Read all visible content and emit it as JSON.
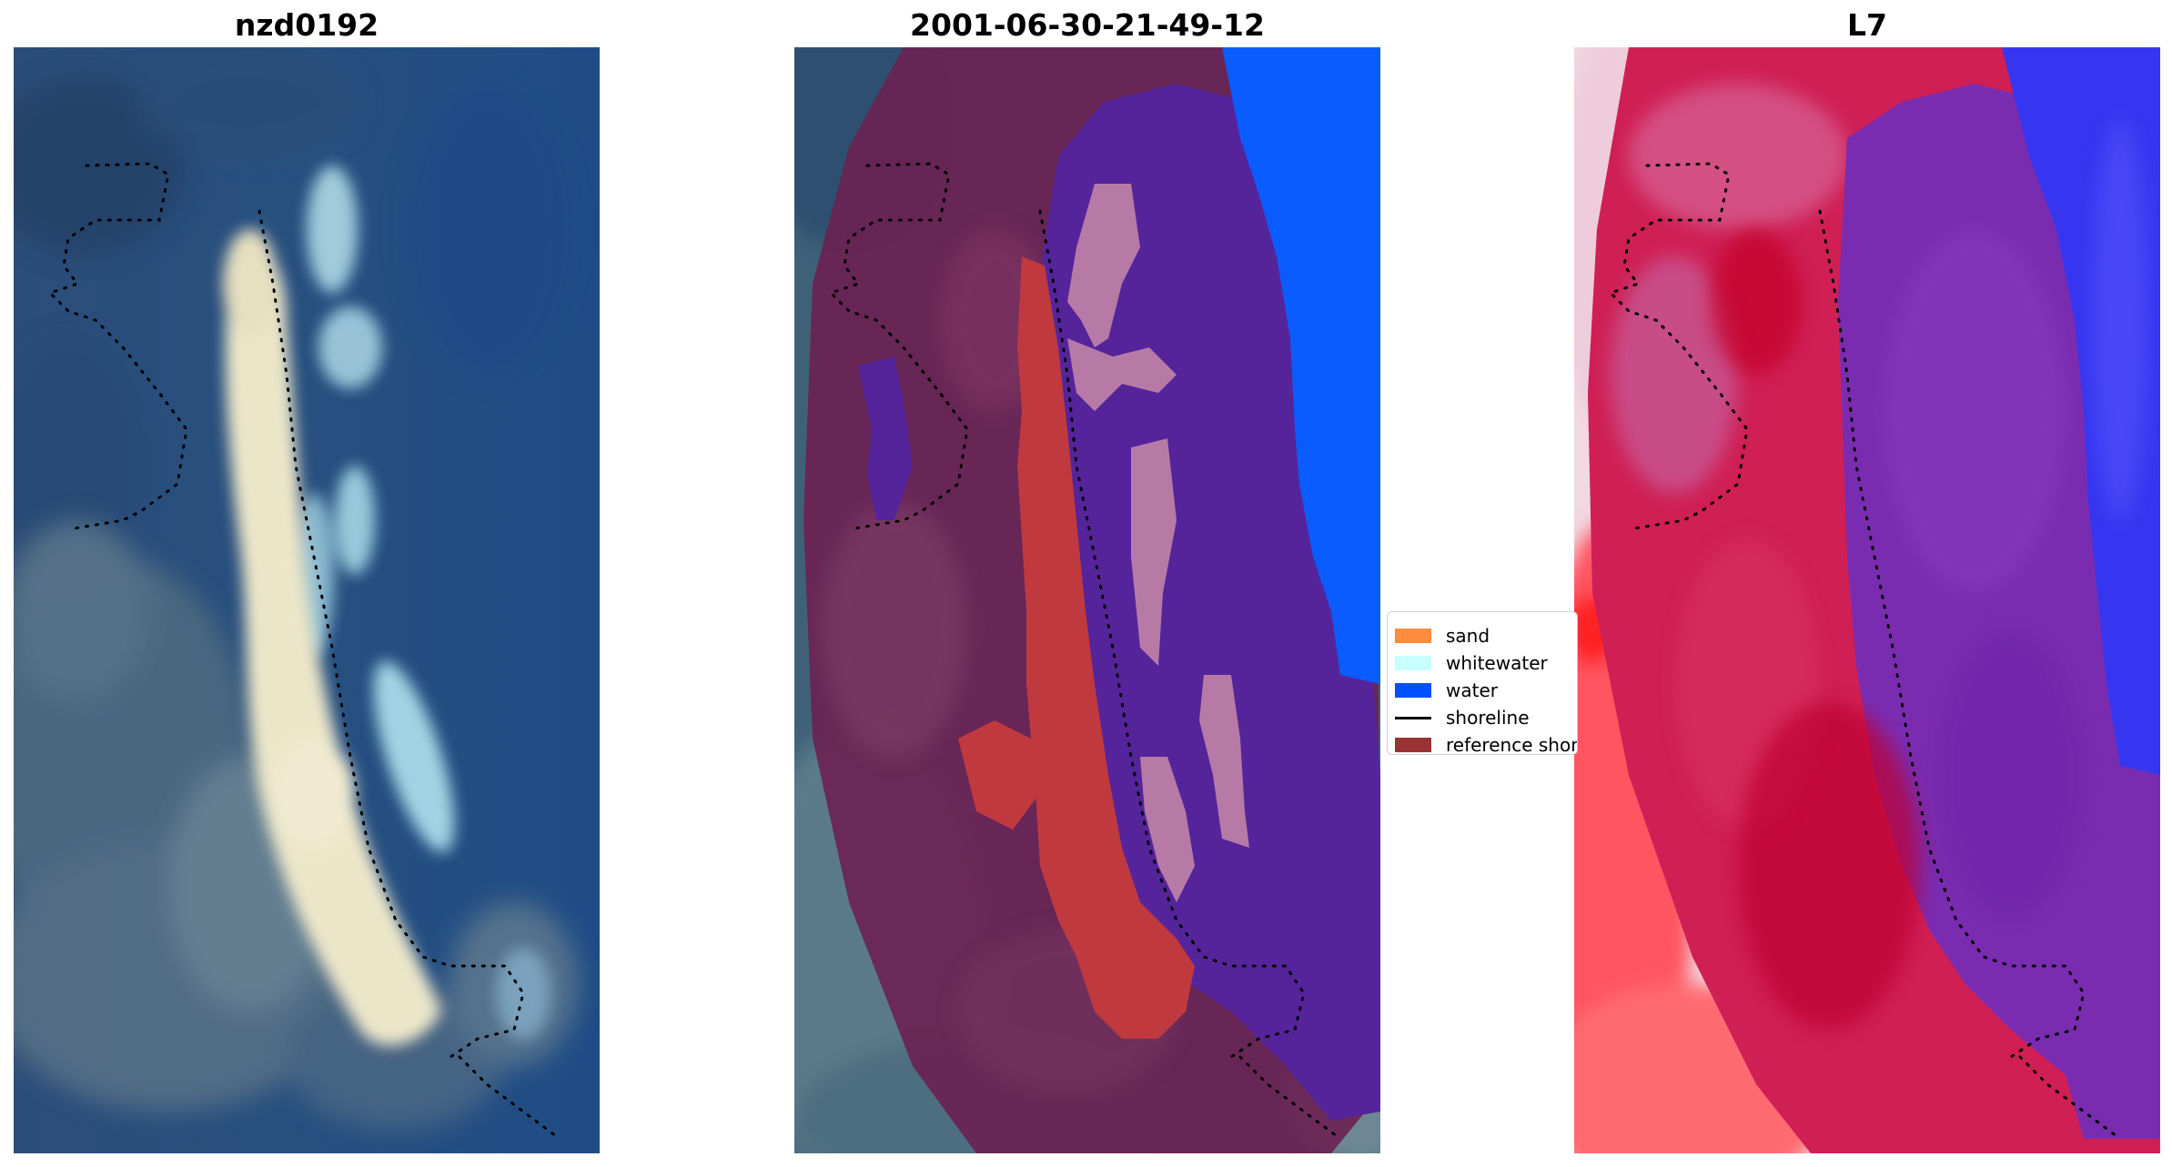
{
  "titles": {
    "left": "nzd0192",
    "middle": "2001-06-30-21-49-12",
    "right": "L7"
  },
  "legend": {
    "items": [
      {
        "label": "sand",
        "color": "#ff8c3c"
      },
      {
        "label": "whitewater",
        "color": "#c8ffff"
      },
      {
        "label": "water",
        "color": "#0050ff"
      },
      {
        "label": "shoreline",
        "color": "#000000"
      },
      {
        "label": "reference shoreline",
        "color": "#993333"
      }
    ]
  },
  "colors": {
    "satellite_water": "#2a4f80",
    "satellite_sand": "#e9e4c8",
    "classified_land_overlay": "#6e1f4f",
    "classified_water": "#55249a",
    "classified_ocean": "#0a5cff",
    "classified_sand": "#c0393f",
    "classified_whitewater": "#b77aa6",
    "index_land": "#d2123f",
    "index_water": "#7a2cb0",
    "index_ocean": "#3636f0"
  }
}
